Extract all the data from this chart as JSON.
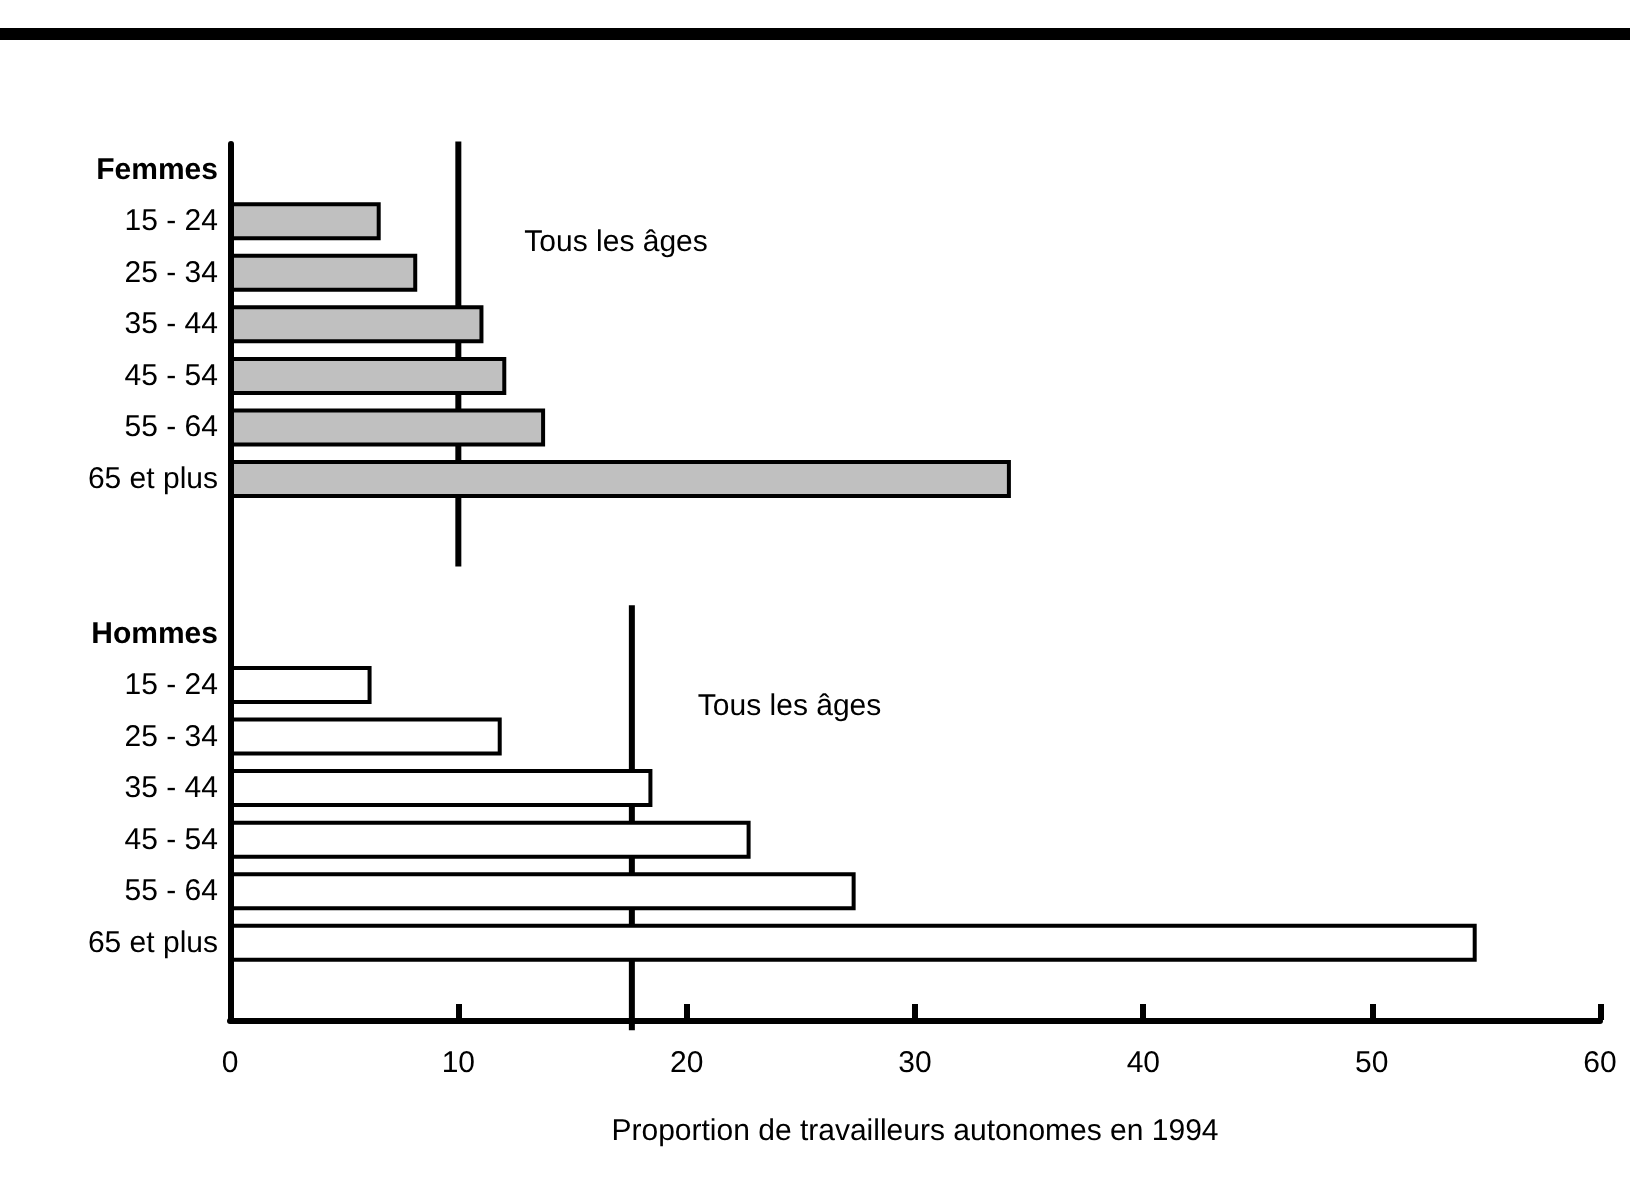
{
  "chart_data": {
    "type": "bar",
    "orientation": "horizontal",
    "stacked": true,
    "xlabel": "Proportion de travailleurs autonomes en 1994",
    "categories": [
      "Femmes",
      "15 - 24",
      "25 - 34",
      "35 - 44",
      "45 - 54",
      "55 - 64",
      "65 et plus",
      null,
      null,
      "Hommes",
      "15 - 24",
      "25 - 34",
      "35 - 44",
      "45 - 54",
      "55 - 64",
      "65 et plus",
      null
    ],
    "series": [
      {
        "color": "#c0c0c0",
        "values": [
          null,
          6.6,
          8.2,
          11.1,
          12.1,
          13.8,
          34.2,
          null,
          null,
          null,
          null,
          null,
          null,
          null,
          null,
          null,
          null
        ]
      },
      {
        "color": "#ffffff",
        "values": [
          null,
          null,
          null,
          null,
          null,
          null,
          null,
          null,
          null,
          null,
          6.2,
          11.9,
          18.5,
          22.8,
          27.4,
          54.6,
          null
        ]
      }
    ],
    "xlim": [
      0,
      60
    ],
    "xticks": [
      0,
      10,
      20,
      30,
      40,
      50,
      60
    ],
    "grid": false,
    "ref_lines": [
      {
        "axis": "x",
        "value": 10,
        "label": "Tous les âges",
        "color": "#000000"
      },
      {
        "axis": "x",
        "value": 17.6,
        "label": "Tous les âges",
        "color": "#000000"
      }
    ]
  }
}
